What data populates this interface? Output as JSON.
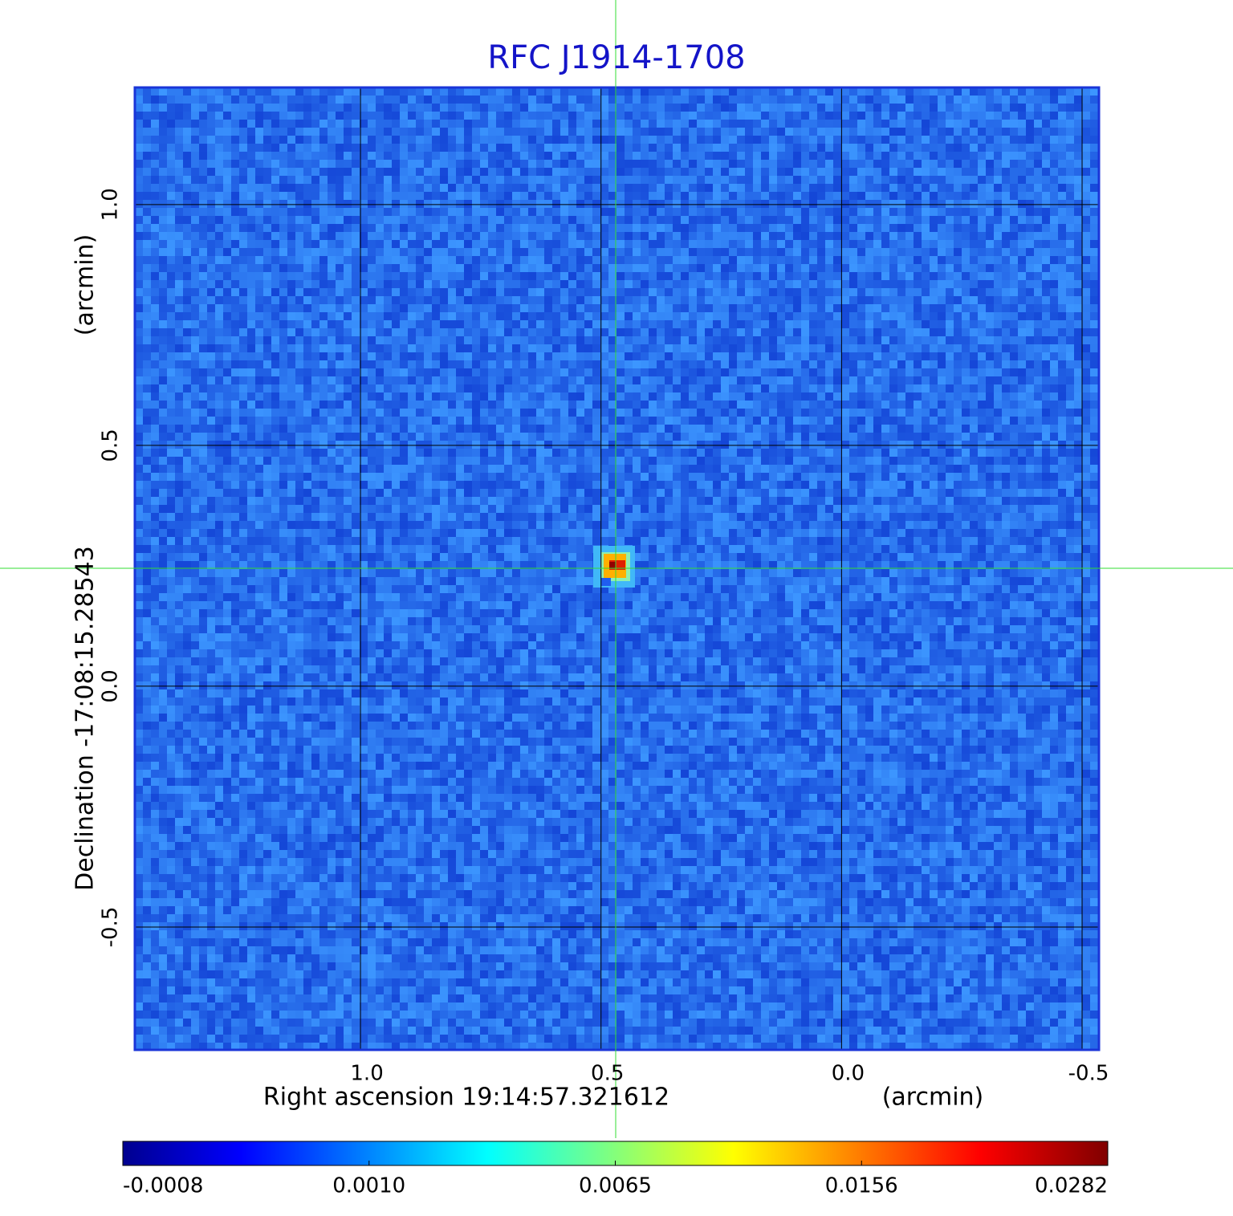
{
  "chart_data": {
    "type": "image",
    "title": "RFC J1914-1708",
    "x_label": "Right ascension  19:14:57.321612",
    "x_unit": "(arcmin)",
    "y_label": "Declination  -17:08:15.28543",
    "y_unit": "(arcmin)",
    "xlim": [
      1.469,
      -0.535
    ],
    "ylim": [
      -0.755,
      1.243
    ],
    "xticks": [
      {
        "value": 1,
        "label": "1.0"
      },
      0.5,
      {
        "value": 0,
        "label": "0.0"
      },
      -0.5
    ],
    "yticks": [
      -0.5,
      {
        "value": 0,
        "label": "0.0"
      },
      0.5,
      {
        "value": 1,
        "label": "1.0"
      }
    ],
    "grid": true,
    "clim": [
      -0.0008,
      0.0282
    ],
    "colorbar_ticks": [
      -0.0008,
      {
        "value": 0.001,
        "label": "0.0010"
      },
      0.0065,
      0.0156,
      0.0282
    ]
  }
}
